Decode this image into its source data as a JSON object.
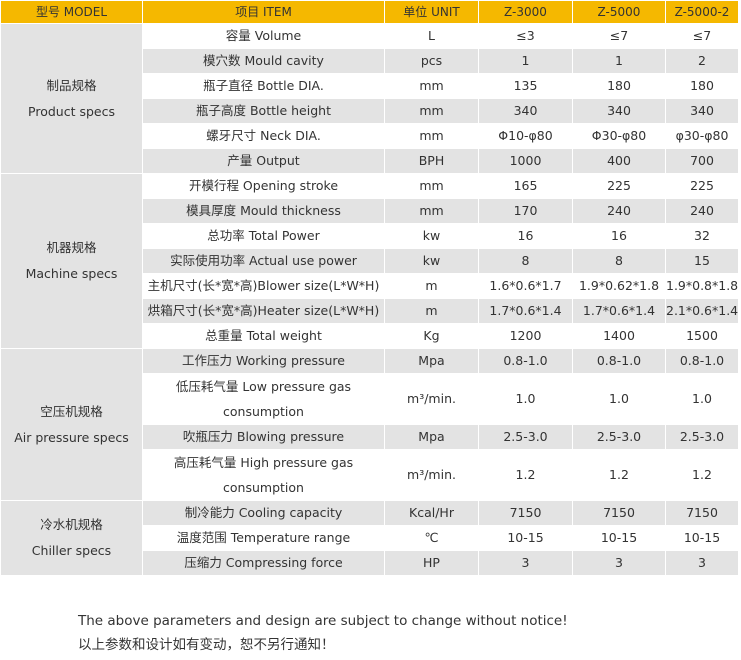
{
  "header": {
    "model": "型号 MODEL",
    "item": "项目 ITEM",
    "unit": "单位 UNIT",
    "models": [
      "Z-3000",
      "Z-5000",
      "Z-5000-2"
    ]
  },
  "sections": [
    {
      "name_cn": "制品规格",
      "name_en": "Product specs",
      "rows": [
        {
          "item": "容量 Volume",
          "unit": "L",
          "values": [
            "≤3",
            "≤7",
            "≤7"
          ]
        },
        {
          "item": "模穴数 Mould cavity",
          "unit": "pcs",
          "values": [
            "1",
            "1",
            "2"
          ]
        },
        {
          "item": "瓶子直径 Bottle DIA.",
          "unit": "mm",
          "values": [
            "135",
            "180",
            "180"
          ]
        },
        {
          "item": "瓶子高度 Bottle height",
          "unit": "mm",
          "values": [
            "340",
            "340",
            "340"
          ]
        },
        {
          "item": "螺牙尺寸 Neck DIA.",
          "unit": "mm",
          "values": [
            "Φ10-φ80",
            "Φ30-φ80",
            "φ30-φ80"
          ]
        },
        {
          "item": "产量 Output",
          "unit": "BPH",
          "values": [
            "1000",
            "400",
            "700"
          ]
        }
      ]
    },
    {
      "name_cn": "机器规格",
      "name_en": "Machine specs",
      "rows": [
        {
          "item": "开模行程 Opening stroke",
          "unit": "mm",
          "values": [
            "165",
            "225",
            "225"
          ]
        },
        {
          "item": "模具厚度 Mould thickness",
          "unit": "mm",
          "values": [
            "170",
            "240",
            "240"
          ]
        },
        {
          "item": "总功率 Total Power",
          "unit": "kw",
          "values": [
            "16",
            "16",
            "32"
          ]
        },
        {
          "item": "实际使用功率 Actual use power",
          "unit": "kw",
          "values": [
            "8",
            "8",
            "15"
          ]
        },
        {
          "item": "主机尺寸(长*宽*高)Blower size(L*W*H)",
          "unit": "m",
          "values": [
            "1.6*0.6*1.7",
            "1.9*0.62*1.8",
            "1.9*0.8*1.8"
          ]
        },
        {
          "item": "烘箱尺寸(长*宽*高)Heater size(L*W*H)",
          "unit": "m",
          "values": [
            "1.7*0.6*1.4",
            "1.7*0.6*1.4",
            "2.1*0.6*1.4"
          ]
        },
        {
          "item": "总重量 Total weight",
          "unit": "Kg",
          "values": [
            "1200",
            "1400",
            "1500"
          ]
        }
      ]
    },
    {
      "name_cn": "空压机规格",
      "name_en": "Air pressure specs",
      "rows": [
        {
          "item": "工作压力 Working pressure",
          "unit": "Mpa",
          "values": [
            "0.8-1.0",
            "0.8-1.0",
            "0.8-1.0"
          ]
        },
        {
          "item": "低压耗气量 Low pressure gas consumption",
          "item_lines": [
            "低压耗气量 Low pressure gas",
            "consumption"
          ],
          "unit": "m³/min.",
          "values": [
            "1.0",
            "1.0",
            "1.0"
          ]
        },
        {
          "item": "吹瓶压力 Blowing pressure",
          "unit": "Mpa",
          "values": [
            "2.5-3.0",
            "2.5-3.0",
            "2.5-3.0"
          ]
        },
        {
          "item": "高压耗气量 High pressure gas consumption",
          "item_lines": [
            "高压耗气量 High pressure gas",
            "consumption"
          ],
          "unit": "m³/min.",
          "values": [
            "1.2",
            "1.2",
            "1.2"
          ]
        }
      ]
    },
    {
      "name_cn": "冷水机规格",
      "name_en": "Chiller specs",
      "rows": [
        {
          "item": "制冷能力 Cooling capacity",
          "unit": "Kcal/Hr",
          "values": [
            "7150",
            "7150",
            "7150"
          ]
        },
        {
          "item": "温度范围 Temperature range",
          "unit": "℃",
          "values": [
            "10-15",
            "10-15",
            "10-15"
          ]
        },
        {
          "item": "压缩力 Compressing force",
          "unit": "HP",
          "values": [
            "3",
            "3",
            "3"
          ]
        }
      ]
    }
  ],
  "footer": {
    "en": "The above parameters and design are subject to change without notice!",
    "cn": "以上参数和设计如有变动，恕不另行通知！"
  }
}
